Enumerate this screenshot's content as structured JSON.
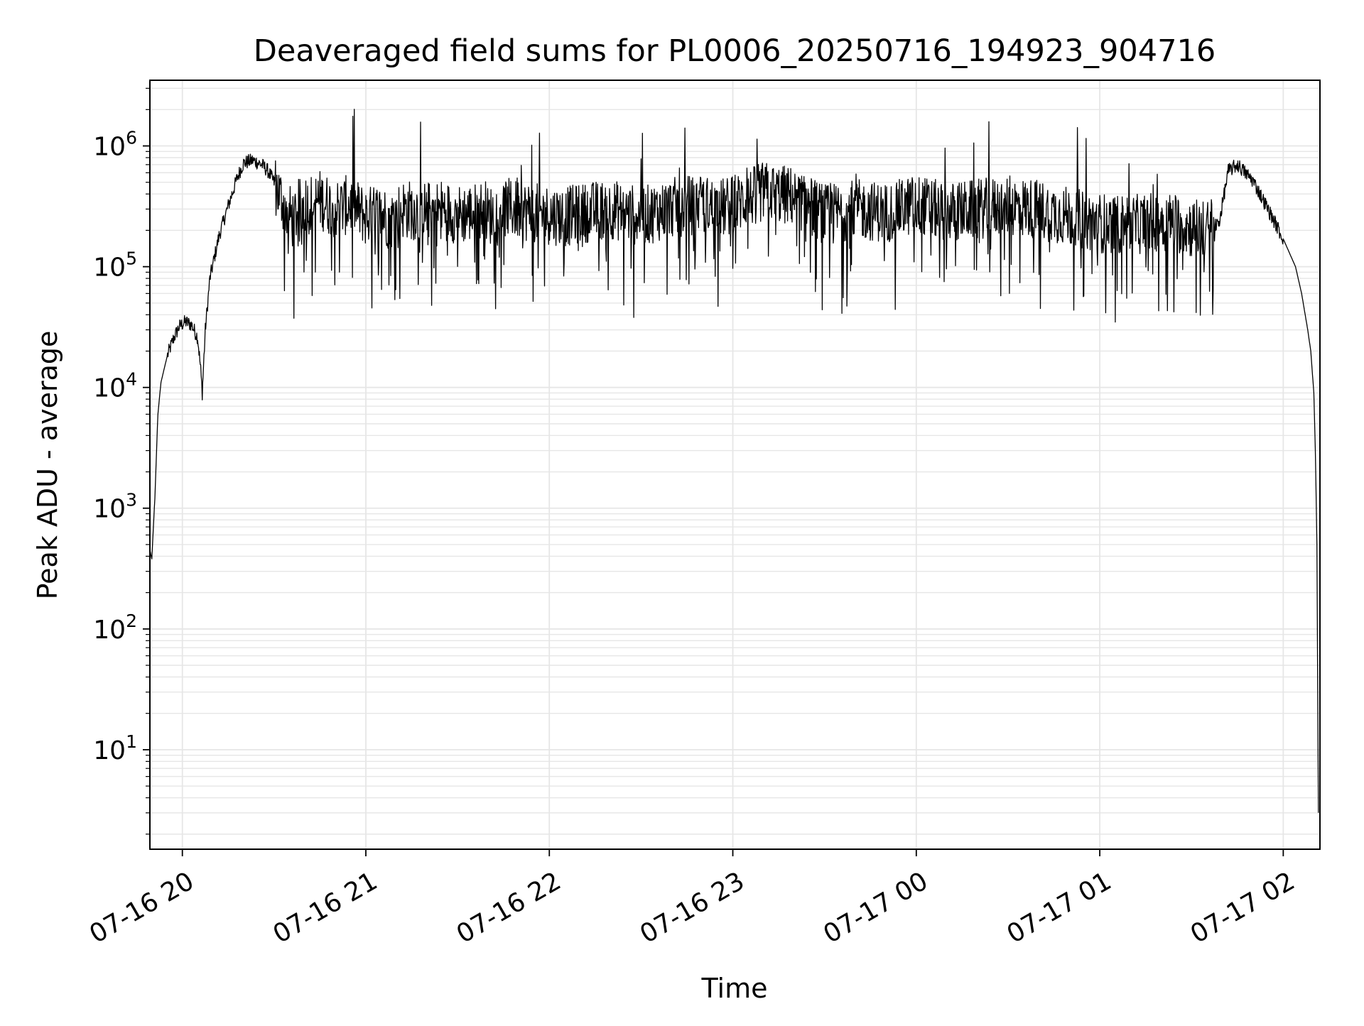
{
  "chart_data": {
    "type": "line",
    "title": "Deaveraged field sums for PL0006_20250716_194923_904716",
    "xlabel": "Time",
    "ylabel": "Peak ADU - average",
    "x_scale": "time",
    "y_scale": "log",
    "xlim": [
      "2025-07-16 19:49:23",
      "2025-07-17 02:12:00"
    ],
    "ylim": [
      1.5,
      3500000
    ],
    "grid": true,
    "x_tick_labels": [
      "07-16 20",
      "07-16 21",
      "07-16 22",
      "07-16 23",
      "07-17 00",
      "07-17 01",
      "07-17 02"
    ],
    "x_ticks": [
      "2025-07-16 20:00",
      "2025-07-16 21:00",
      "2025-07-16 22:00",
      "2025-07-16 23:00",
      "2025-07-17 00:00",
      "2025-07-17 01:00",
      "2025-07-17 02:00"
    ],
    "y_ticks": [
      {
        "value": 10,
        "base": "10",
        "exp": "1"
      },
      {
        "value": 100,
        "base": "10",
        "exp": "2"
      },
      {
        "value": 1000,
        "base": "10",
        "exp": "3"
      },
      {
        "value": 10000,
        "base": "10",
        "exp": "4"
      },
      {
        "value": 100000,
        "base": "10",
        "exp": "5"
      },
      {
        "value": 1000000,
        "base": "10",
        "exp": "6"
      }
    ],
    "series": [
      {
        "color": "#000000",
        "x": [
          "2025-07-16 19:49:23",
          "2025-07-16 19:50:00",
          "2025-07-16 19:51:00",
          "2025-07-16 19:52:00",
          "2025-07-16 19:53:00",
          "2025-07-16 19:55:00",
          "2025-07-16 19:57:00",
          "2025-07-16 19:59:00",
          "2025-07-16 20:01:00",
          "2025-07-16 20:03:00",
          "2025-07-16 20:05:00",
          "2025-07-16 20:06:00",
          "2025-07-16 20:06:30",
          "2025-07-16 20:07:30",
          "2025-07-16 20:09:00",
          "2025-07-16 20:12:00",
          "2025-07-16 20:15:00",
          "2025-07-16 20:18:00",
          "2025-07-16 20:20:00",
          "2025-07-16 20:23:00",
          "2025-07-16 20:26:00",
          "2025-07-16 20:28:00",
          "2025-07-16 20:30:00",
          "2025-07-16 20:32:00",
          "2025-07-16 20:34:00",
          "2025-07-16 20:36:00",
          "2025-07-16 20:38:00",
          "2025-07-16 20:42:00",
          "2025-07-16 20:45:00",
          "2025-07-16 20:50:00",
          "2025-07-16 20:55:00",
          "2025-07-16 21:00:00",
          "2025-07-16 21:05:00",
          "2025-07-16 21:08:00",
          "2025-07-16 21:12:00",
          "2025-07-16 21:20:00",
          "2025-07-16 21:25:00",
          "2025-07-16 21:30:00",
          "2025-07-16 21:35:00",
          "2025-07-16 21:39:00",
          "2025-07-16 21:40:00",
          "2025-07-16 21:45:00",
          "2025-07-16 21:55:00",
          "2025-07-16 22:05:00",
          "2025-07-16 22:15:00",
          "2025-07-16 22:20:00",
          "2025-07-16 22:30:00",
          "2025-07-16 22:40:00",
          "2025-07-16 22:50:00",
          "2025-07-16 22:55:00",
          "2025-07-16 23:00:00",
          "2025-07-16 23:10:00",
          "2025-07-16 23:20:00",
          "2025-07-16 23:30:00",
          "2025-07-16 23:40:00",
          "2025-07-16 23:50:00",
          "2025-07-17 00:00:00",
          "2025-07-17 00:10:00",
          "2025-07-17 00:20:00",
          "2025-07-17 00:30:00",
          "2025-07-17 00:40:00",
          "2025-07-17 00:50:00",
          "2025-07-17 01:00:00",
          "2025-07-17 01:10:00",
          "2025-07-17 01:20:00",
          "2025-07-17 01:25:00",
          "2025-07-17 01:30:00",
          "2025-07-17 01:35:00",
          "2025-07-17 01:39:00",
          "2025-07-17 01:42:00",
          "2025-07-17 01:45:00",
          "2025-07-17 01:50:00",
          "2025-07-17 01:55:00",
          "2025-07-17 02:00:00",
          "2025-07-17 02:04:00",
          "2025-07-17 02:06:00",
          "2025-07-17 02:08:00",
          "2025-07-17 02:09:00",
          "2025-07-17 02:10:00",
          "2025-07-17 02:10:30",
          "2025-07-17 02:11:00",
          "2025-07-17 02:11:30"
        ],
        "y": [
          450,
          380,
          1200,
          6000,
          11000,
          18000,
          25000,
          32000,
          35000,
          33000,
          26000,
          14000,
          9000,
          30000,
          80000,
          180000,
          320000,
          550000,
          720000,
          760000,
          700000,
          620000,
          500000,
          380000,
          300000,
          250000,
          300000,
          330000,
          360000,
          300000,
          330000,
          260000,
          280000,
          240000,
          300000,
          290000,
          300000,
          270000,
          280000,
          300000,
          260000,
          310000,
          280000,
          260000,
          290000,
          300000,
          260000,
          310000,
          330000,
          300000,
          320000,
          420000,
          380000,
          270000,
          300000,
          280000,
          330000,
          280000,
          300000,
          320000,
          300000,
          260000,
          230000,
          220000,
          240000,
          230000,
          210000,
          200000,
          230000,
          620000,
          700000,
          520000,
          300000,
          170000,
          100000,
          60000,
          30000,
          20000,
          9000,
          3000,
          500,
          3
        ]
      }
    ]
  }
}
